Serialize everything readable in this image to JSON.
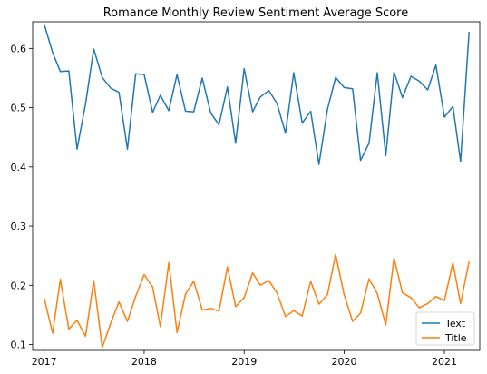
{
  "chart_data": {
    "type": "line",
    "title": "Romance Monthly Review Sentiment Average Score",
    "xlabel": "",
    "ylabel": "",
    "x_start": "2017-01",
    "x_ticks": [
      "2017",
      "2018",
      "2019",
      "2020",
      "2021"
    ],
    "y_ticks": [
      "0.1",
      "0.2",
      "0.3",
      "0.4",
      "0.5",
      "0.6"
    ],
    "xlim": [
      "2016-11-20",
      "2021-05-10"
    ],
    "ylim": [
      0.09,
      0.645
    ],
    "grid": false,
    "legend_position": "lower-right",
    "series": [
      {
        "name": "Text",
        "color": "#1f77b4",
        "values": [
          0.641,
          0.593,
          0.561,
          0.562,
          0.43,
          0.506,
          0.599,
          0.551,
          0.533,
          0.526,
          0.43,
          0.557,
          0.556,
          0.492,
          0.521,
          0.495,
          0.556,
          0.494,
          0.493,
          0.55,
          0.491,
          0.471,
          0.535,
          0.44,
          0.566,
          0.493,
          0.518,
          0.529,
          0.507,
          0.457,
          0.559,
          0.474,
          0.494,
          0.404,
          0.497,
          0.551,
          0.534,
          0.532,
          0.411,
          0.44,
          0.559,
          0.419,
          0.56,
          0.517,
          0.553,
          0.545,
          0.53,
          0.572,
          0.484,
          0.502,
          0.409,
          0.628
        ]
      },
      {
        "name": "Title",
        "color": "#ff7f0e",
        "values": [
          0.178,
          0.119,
          0.21,
          0.126,
          0.141,
          0.114,
          0.208,
          0.095,
          0.136,
          0.172,
          0.139,
          0.181,
          0.218,
          0.197,
          0.13,
          0.238,
          0.12,
          0.185,
          0.207,
          0.158,
          0.161,
          0.156,
          0.231,
          0.164,
          0.179,
          0.221,
          0.2,
          0.208,
          0.187,
          0.147,
          0.157,
          0.148,
          0.207,
          0.168,
          0.184,
          0.252,
          0.184,
          0.139,
          0.153,
          0.211,
          0.186,
          0.133,
          0.246,
          0.187,
          0.179,
          0.162,
          0.169,
          0.181,
          0.174,
          0.238,
          0.169,
          0.24
        ]
      }
    ]
  }
}
